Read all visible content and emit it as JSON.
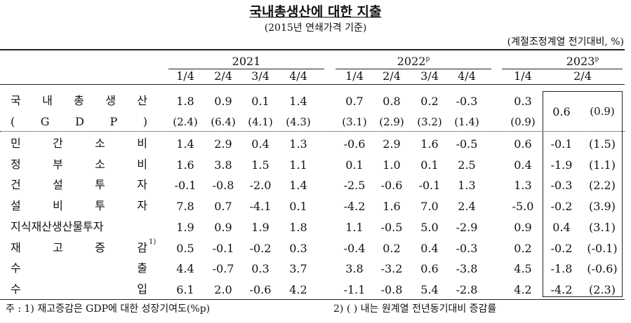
{
  "title": "국내총생산에 대한 지출",
  "subtitle": "(2015년 연쇄가격 기준)",
  "unit": "(계절조정계열 전기대비, %)",
  "table": {
    "years": [
      {
        "label": "2021"
      },
      {
        "label": "2022",
        "sup": "p"
      },
      {
        "label": "2023",
        "sup": "p"
      }
    ],
    "quarters": [
      "1/4",
      "2/4",
      "3/4",
      "4/4",
      "1/4",
      "2/4",
      "3/4",
      "4/4",
      "1/4",
      "2/4"
    ],
    "gdp": {
      "label": [
        "국 내 총 생 산",
        "( G D P )"
      ],
      "values": [
        "1.8",
        "0.9",
        "0.1",
        "1.4",
        "0.7",
        "0.8",
        "0.2",
        "-0.3",
        "0.3",
        "0.6"
      ],
      "yoy": [
        "(2.4)",
        "(6.4)",
        "(4.1)",
        "(4.3)",
        "(3.1)",
        "(2.9)",
        "(3.2)",
        "(1.4)",
        "(0.9)",
        "(0.9)"
      ]
    },
    "rows": [
      {
        "label": "민 간 소 비",
        "values": [
          "1.4",
          "2.9",
          "0.4",
          "1.3",
          "-0.6",
          "2.9",
          "1.6",
          "-0.5",
          "0.6",
          "-0.1",
          "(1.5)"
        ]
      },
      {
        "label": "정 부 소 비",
        "values": [
          "1.6",
          "3.8",
          "1.5",
          "1.1",
          "0.1",
          "1.0",
          "0.1",
          "2.5",
          "0.4",
          "-1.9",
          "(1.1)"
        ]
      },
      {
        "label": "건 설 투 자",
        "values": [
          "-0.1",
          "-0.8",
          "-2.0",
          "1.4",
          "-2.5",
          "-0.6",
          "-0.1",
          "1.3",
          "1.3",
          "-0.3",
          "(2.2)"
        ]
      },
      {
        "label": "설 비 투 자",
        "values": [
          "7.8",
          "0.7",
          "-4.1",
          "0.1",
          "-4.2",
          "1.6",
          "7.0",
          "2.4",
          "-5.0",
          "-0.2",
          "(3.9)"
        ]
      },
      {
        "label": "지식재산생산물투자",
        "values": [
          "1.9",
          "0.9",
          "1.9",
          "1.8",
          "1.1",
          "-0.5",
          "5.0",
          "-2.9",
          "0.9",
          "0.4",
          "(3.1)"
        ]
      },
      {
        "label": "재 고 증 감",
        "sup": "1)",
        "values": [
          "0.5",
          "-0.1",
          "-0.2",
          "0.3",
          "-0.4",
          "0.2",
          "0.4",
          "-0.3",
          "0.2",
          "-0.2",
          "(-0.1)"
        ]
      },
      {
        "label": "수 출",
        "values": [
          "4.4",
          "-0.7",
          "0.3",
          "3.7",
          "3.8",
          "-3.2",
          "0.6",
          "-3.8",
          "4.5",
          "-1.8",
          "(-0.6)"
        ]
      },
      {
        "label": "수 입",
        "values": [
          "6.1",
          "2.0",
          "-0.6",
          "4.2",
          "-1.1",
          "-0.8",
          "5.4",
          "-2.8",
          "4.2",
          "-4.2",
          "(2.3)"
        ]
      }
    ]
  },
  "notes": [
    "주 : 1) 재고증감은 GDP에 대한 성장기여도(%p)",
    "2) ( ) 내는 원계열 전년동기대비 증감률"
  ]
}
